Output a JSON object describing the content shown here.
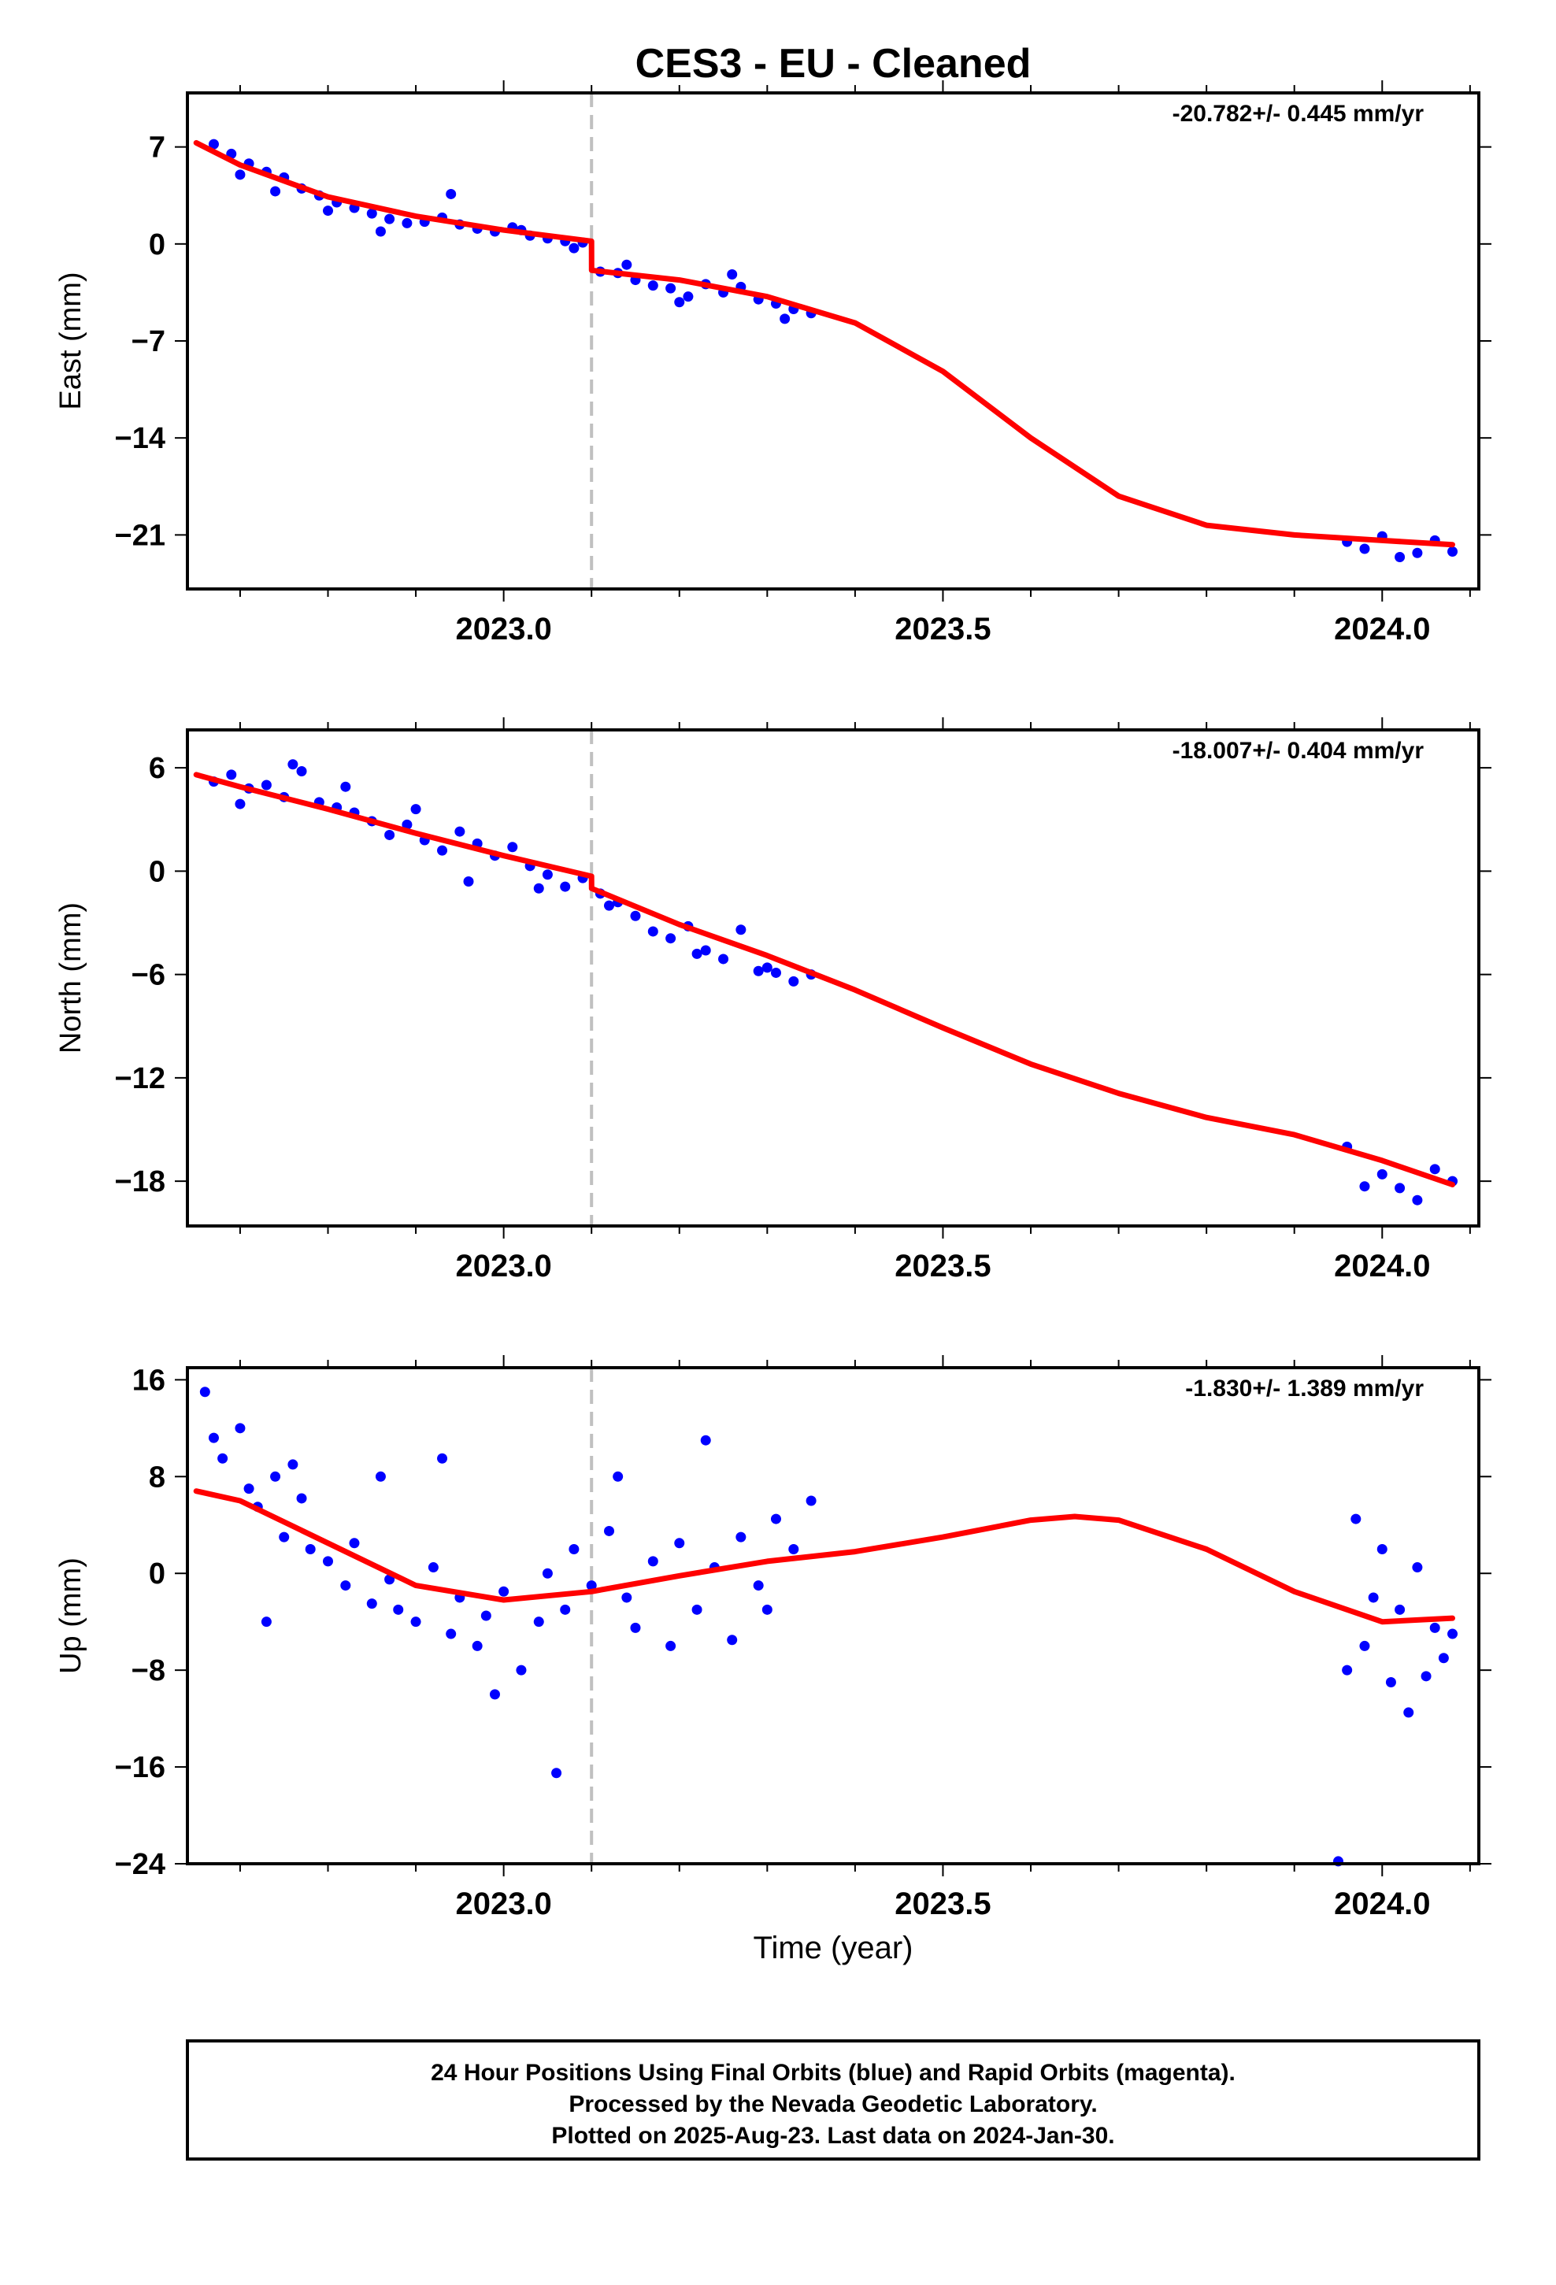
{
  "title": "CES3  - EU - Cleaned",
  "colors": {
    "points": "#0000ff",
    "model": "#ff0000",
    "event_line": "#c0c0c0",
    "frame": "#000000"
  },
  "xlabel": "Time (year)",
  "x_tick_labels": [
    "2023.0",
    "2023.5",
    "2024.0"
  ],
  "footer_lines": [
    "24 Hour Positions Using Final Orbits (blue) and Rapid Orbits (magenta).",
    "Processed by the Nevada Geodetic Laboratory.",
    "Plotted on 2025-Aug-23. Last data on 2024-Jan-30."
  ],
  "chart_data": [
    {
      "type": "scatter",
      "ylabel": "East (mm)",
      "rate_label": "-20.782+/- 0.445 mm/yr",
      "xlim": [
        2022.64,
        2024.11
      ],
      "ylim": [
        -24.9,
        10.9
      ],
      "yticks": [
        7,
        0,
        -7,
        -14,
        -21
      ],
      "xticks": [
        2023.0,
        2023.5,
        2024.0
      ],
      "event_line_x": 2023.1,
      "grid": false,
      "series": [
        {
          "kind": "points",
          "x": [
            2022.67,
            2022.69,
            2022.71,
            2022.73,
            2022.75,
            2022.77,
            2022.79,
            2022.81,
            2022.83,
            2022.85,
            2022.87,
            2022.89,
            2022.91,
            2022.93,
            2022.95,
            2022.97,
            2022.99,
            2023.01,
            2023.03,
            2023.05,
            2023.07,
            2023.09,
            2023.11,
            2023.13,
            2023.15,
            2023.17,
            2023.19,
            2023.21,
            2023.23,
            2023.25,
            2023.27,
            2023.29,
            2023.31,
            2023.33,
            2023.35,
            2022.7,
            2022.74,
            2022.8,
            2022.86,
            2022.94,
            2023.02,
            2023.08,
            2023.14,
            2023.2,
            2023.26,
            2023.32,
            2023.96,
            2023.98,
            2024.0,
            2024.02,
            2024.04,
            2024.06,
            2024.08
          ],
          "y": [
            7.2,
            6.5,
            5.8,
            5.2,
            4.8,
            4.0,
            3.5,
            3.0,
            2.6,
            2.2,
            1.8,
            1.5,
            1.6,
            1.9,
            1.4,
            1.1,
            0.9,
            1.2,
            0.6,
            0.4,
            0.2,
            0.1,
            -2.0,
            -2.1,
            -2.6,
            -3.0,
            -3.2,
            -3.8,
            -2.9,
            -3.5,
            -3.1,
            -4.0,
            -4.3,
            -4.7,
            -5.0,
            5.0,
            3.8,
            2.4,
            0.9,
            3.6,
            1.0,
            -0.3,
            -1.5,
            -4.2,
            -2.2,
            -5.4,
            -21.5,
            -22.0,
            -21.1,
            -22.6,
            -22.3,
            -21.4,
            -22.2
          ]
        },
        {
          "kind": "model",
          "x": [
            2022.65,
            2022.7,
            2022.8,
            2022.9,
            2023.0,
            2023.1,
            2023.1001,
            2023.2,
            2023.3,
            2023.4,
            2023.5,
            2023.6,
            2023.7,
            2023.8,
            2023.9,
            2024.0,
            2024.08
          ],
          "y": [
            7.3,
            5.7,
            3.4,
            2.0,
            1.0,
            0.2,
            -1.9,
            -2.6,
            -3.8,
            -5.7,
            -9.2,
            -14.0,
            -18.2,
            -20.3,
            -21.0,
            -21.4,
            -21.7
          ]
        }
      ]
    },
    {
      "type": "scatter",
      "ylabel": "North (mm)",
      "rate_label": "-18.007+/- 0.404 mm/yr",
      "xlim": [
        2022.64,
        2024.11
      ],
      "ylim": [
        -20.6,
        8.2
      ],
      "yticks": [
        6,
        0,
        -6,
        -12,
        -18
      ],
      "xticks": [
        2023.0,
        2023.5,
        2024.0
      ],
      "event_line_x": 2023.1,
      "grid": false,
      "series": [
        {
          "kind": "points",
          "x": [
            2022.67,
            2022.69,
            2022.71,
            2022.73,
            2022.75,
            2022.77,
            2022.79,
            2022.81,
            2022.83,
            2022.85,
            2022.87,
            2022.89,
            2022.91,
            2022.93,
            2022.95,
            2022.97,
            2022.99,
            2023.01,
            2023.03,
            2023.05,
            2023.07,
            2023.09,
            2023.11,
            2023.13,
            2023.15,
            2023.17,
            2023.19,
            2023.21,
            2023.23,
            2023.25,
            2023.27,
            2023.29,
            2023.31,
            2023.33,
            2023.35,
            2022.7,
            2022.76,
            2022.82,
            2022.9,
            2022.96,
            2023.04,
            2023.12,
            2023.22,
            2023.3,
            2023.96,
            2023.98,
            2024.0,
            2024.02,
            2024.04,
            2024.06,
            2024.08
          ],
          "y": [
            5.2,
            5.6,
            4.8,
            5.0,
            4.3,
            5.8,
            4.0,
            3.7,
            3.4,
            2.9,
            2.1,
            2.7,
            1.8,
            1.2,
            2.3,
            1.6,
            0.9,
            1.4,
            0.3,
            -0.2,
            -0.9,
            -0.4,
            -1.3,
            -1.8,
            -2.6,
            -3.5,
            -3.9,
            -3.2,
            -4.6,
            -5.1,
            -3.4,
            -5.8,
            -5.9,
            -6.4,
            -6.0,
            3.9,
            6.2,
            4.9,
            3.6,
            -0.6,
            -1.0,
            -2.0,
            -4.8,
            -5.6,
            -16.0,
            -18.3,
            -17.6,
            -18.4,
            -19.1,
            -17.3,
            -18.0
          ]
        },
        {
          "kind": "model",
          "x": [
            2022.65,
            2022.7,
            2022.8,
            2022.9,
            2023.0,
            2023.1,
            2023.1001,
            2023.2,
            2023.3,
            2023.4,
            2023.5,
            2023.6,
            2023.7,
            2023.8,
            2023.9,
            2024.0,
            2024.08
          ],
          "y": [
            5.6,
            4.9,
            3.6,
            2.2,
            0.9,
            -0.3,
            -1.0,
            -3.1,
            -4.9,
            -6.9,
            -9.1,
            -11.2,
            -12.9,
            -14.3,
            -15.3,
            -16.8,
            -18.2
          ]
        }
      ]
    },
    {
      "type": "scatter",
      "ylabel": "Up (mm)",
      "rate_label": "-1.830+/- 1.389 mm/yr",
      "xlim": [
        2022.64,
        2024.11
      ],
      "ylim": [
        -24,
        17
      ],
      "yticks": [
        16,
        8,
        0,
        -8,
        -16,
        -24
      ],
      "xticks": [
        2023.0,
        2023.5,
        2024.0
      ],
      "event_line_x": 2023.1,
      "grid": false,
      "series": [
        {
          "kind": "points",
          "x": [
            2022.66,
            2022.67,
            2022.68,
            2022.7,
            2022.71,
            2022.72,
            2022.74,
            2022.75,
            2022.77,
            2022.78,
            2022.8,
            2022.82,
            2022.83,
            2022.85,
            2022.87,
            2022.88,
            2022.9,
            2022.92,
            2022.94,
            2022.95,
            2022.97,
            2022.98,
            2023.0,
            2023.02,
            2023.04,
            2023.05,
            2023.07,
            2023.08,
            2023.1,
            2023.12,
            2023.14,
            2023.15,
            2023.17,
            2023.19,
            2023.2,
            2023.22,
            2023.24,
            2023.26,
            2023.27,
            2023.29,
            2023.31,
            2023.33,
            2023.35,
            2022.73,
            2022.76,
            2022.86,
            2022.93,
            2022.99,
            2023.06,
            2023.13,
            2023.23,
            2023.3,
            2023.95,
            2023.96,
            2023.97,
            2023.98,
            2023.99,
            2024.0,
            2024.01,
            2024.02,
            2024.03,
            2024.04,
            2024.05,
            2024.06,
            2024.07,
            2024.08
          ],
          "y": [
            15.0,
            11.2,
            9.5,
            12.0,
            7.0,
            5.5,
            8.0,
            3.0,
            6.2,
            2.0,
            1.0,
            -1.0,
            2.5,
            -2.5,
            -0.5,
            -3.0,
            -4.0,
            0.5,
            -5.0,
            -2.0,
            -6.0,
            -3.5,
            -1.5,
            -8.0,
            -4.0,
            0.0,
            -3.0,
            2.0,
            -1.0,
            3.5,
            -2.0,
            -4.5,
            1.0,
            -6.0,
            2.5,
            -3.0,
            0.5,
            -5.5,
            3.0,
            -1.0,
            4.5,
            2.0,
            6.0,
            -4.0,
            9.0,
            8.0,
            9.5,
            -10.0,
            -16.5,
            8.0,
            11.0,
            -3.0,
            -23.8,
            -8.0,
            4.5,
            -6.0,
            -2.0,
            2.0,
            -9.0,
            -3.0,
            -11.5,
            0.5,
            -8.5,
            -4.5,
            -7.0,
            -5.0
          ]
        },
        {
          "kind": "model",
          "x": [
            2022.65,
            2022.7,
            2022.8,
            2022.9,
            2023.0,
            2023.1,
            2023.2,
            2023.3,
            2023.4,
            2023.5,
            2023.6,
            2023.65,
            2023.7,
            2023.8,
            2023.9,
            2024.0,
            2024.08
          ],
          "y": [
            6.8,
            6.0,
            2.5,
            -1.0,
            -2.2,
            -1.5,
            -0.2,
            1.0,
            1.8,
            3.0,
            4.4,
            4.7,
            4.4,
            2.0,
            -1.5,
            -4.0,
            -3.7
          ]
        }
      ]
    }
  ]
}
